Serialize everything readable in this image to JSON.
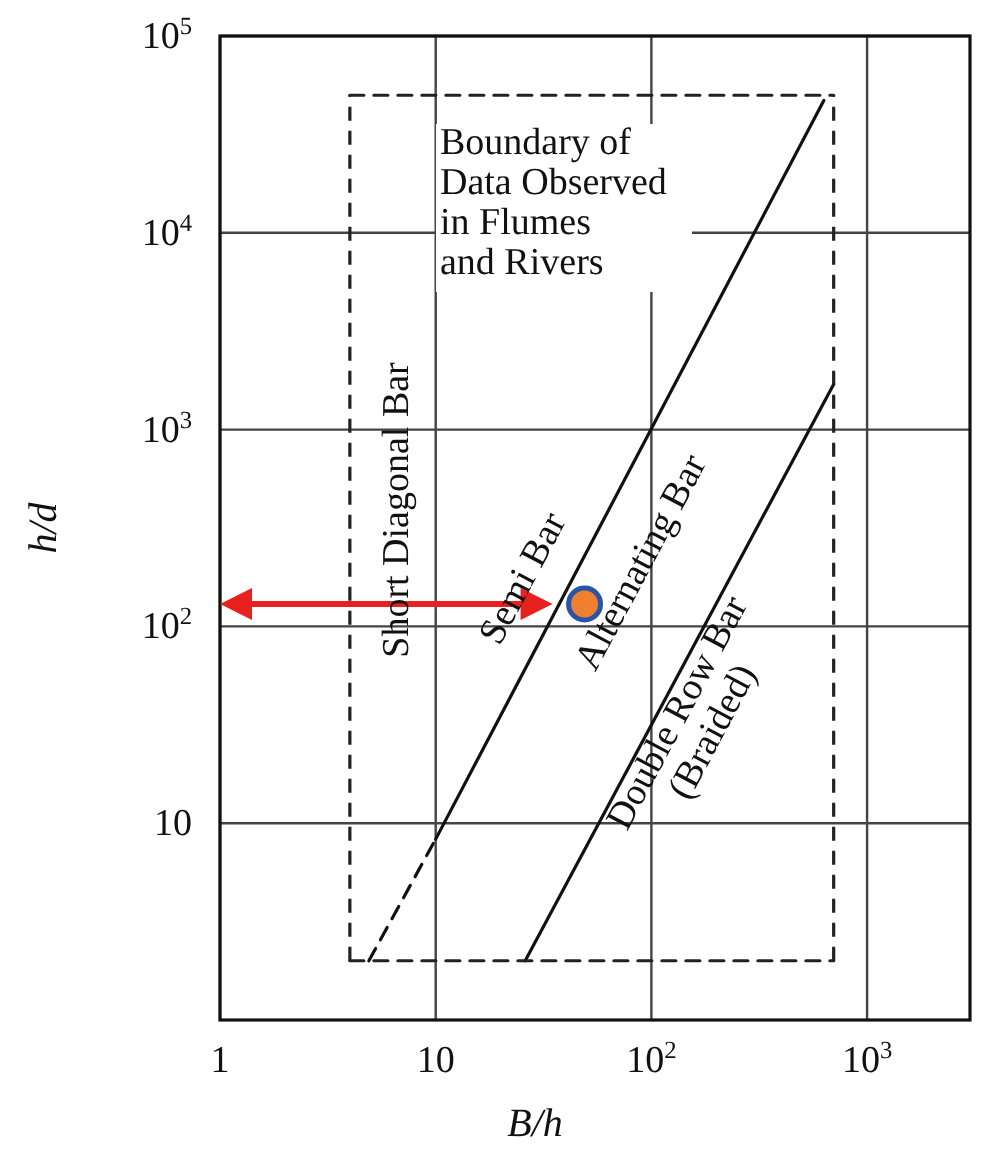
{
  "chart_data": {
    "type": "line",
    "xlabel": "B/h",
    "ylabel": "h/d",
    "log": "xy",
    "grid": true,
    "xlim": [
      1,
      3000
    ],
    "ylim": [
      1,
      100000
    ],
    "xticks": [
      1,
      10,
      {
        "value": 100,
        "label": "10$^{2}$"
      },
      {
        "value": 1000,
        "label": "10$^{3}$"
      }
    ],
    "yticks": [
      10,
      {
        "value": 100,
        "label": "10$^{2}$"
      },
      {
        "value": 1000,
        "label": "10$^{3}$"
      },
      {
        "value": 10000,
        "label": "10$^{4}$"
      },
      {
        "value": 100000,
        "label": "10$^{5}$"
      }
    ],
    "series": [
      {
        "line_style": "solid",
        "color": "#111111",
        "x": [
          10,
          630
        ],
        "values": [
          8.3,
          47000
        ]
      },
      {
        "line_style": "dashed",
        "color": "#111111",
        "x": [
          4.9,
          10
        ],
        "values": [
          2,
          8.3
        ]
      },
      {
        "line_style": "solid",
        "color": "#111111",
        "x": [
          26,
          700
        ],
        "values": [
          2,
          1700
        ]
      },
      {
        "type": "scatter",
        "marker": "circle",
        "color": "#f08030",
        "x": [
          49
        ],
        "values": [
          130
        ]
      },
      {
        "line_style": "dashed",
        "color": "#222222",
        "x": [
          4,
          700
        ],
        "values": [
          2,
          2
        ]
      },
      {
        "line_style": "dashed",
        "color": "#222222",
        "x": [
          4,
          700
        ],
        "values": [
          50000,
          50000
        ]
      }
    ],
    "ref_lines": [
      {
        "axis": "x",
        "value": 4,
        "color": "#222222",
        "line_style": "dashed"
      },
      {
        "axis": "x",
        "value": 700,
        "color": "#222222",
        "line_style": "dashed"
      }
    ],
    "annotations": [
      "Boundary of\nData Observed\nin Flumes\nand Rivers",
      "Short Diagonal Bar",
      "Semi Bar",
      "Alternating Bar",
      "Double Row Bar\n(Braided)"
    ]
  }
}
